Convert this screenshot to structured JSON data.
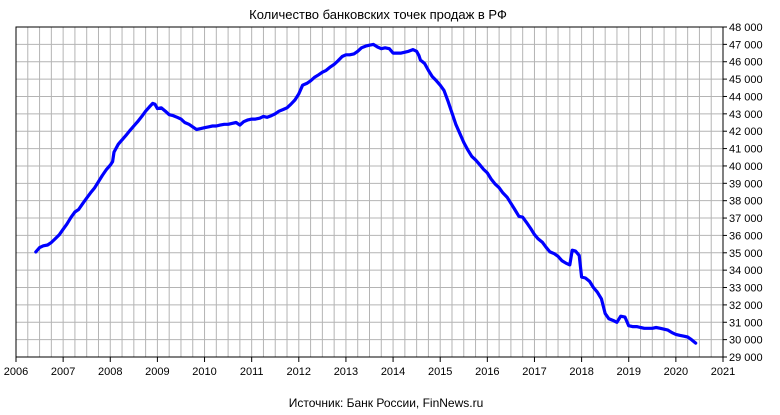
{
  "chart_data": {
    "type": "line",
    "title": "Количество банковских точек продаж в РФ",
    "source": "Источник: Банк России, FinNews.ru",
    "xlim": [
      2006,
      2021
    ],
    "ylim": [
      29000,
      48000
    ],
    "x_ticks": [
      {
        "value": 2006,
        "label": "2006"
      },
      {
        "value": 2007,
        "label": "2007"
      },
      {
        "value": 2008,
        "label": "2008"
      },
      {
        "value": 2009,
        "label": "2009"
      },
      {
        "value": 2010,
        "label": "2010"
      },
      {
        "value": 2011,
        "label": "2011"
      },
      {
        "value": 2012,
        "label": "2012"
      },
      {
        "value": 2013,
        "label": "2013"
      },
      {
        "value": 2014,
        "label": "2014"
      },
      {
        "value": 2015,
        "label": "2015"
      },
      {
        "value": 2016,
        "label": "2016"
      },
      {
        "value": 2017,
        "label": "2017"
      },
      {
        "value": 2018,
        "label": "2018"
      },
      {
        "value": 2019,
        "label": "2019"
      },
      {
        "value": 2020,
        "label": "2020"
      },
      {
        "value": 2021,
        "label": "2021"
      }
    ],
    "y_ticks": [
      {
        "value": 29000,
        "label": "29 000"
      },
      {
        "value": 30000,
        "label": "30 000"
      },
      {
        "value": 31000,
        "label": "31 000"
      },
      {
        "value": 32000,
        "label": "32 000"
      },
      {
        "value": 33000,
        "label": "33 000"
      },
      {
        "value": 34000,
        "label": "34 000"
      },
      {
        "value": 35000,
        "label": "35 000"
      },
      {
        "value": 36000,
        "label": "36 000"
      },
      {
        "value": 37000,
        "label": "37 000"
      },
      {
        "value": 38000,
        "label": "38 000"
      },
      {
        "value": 39000,
        "label": "39 000"
      },
      {
        "value": 40000,
        "label": "40 000"
      },
      {
        "value": 41000,
        "label": "41 000"
      },
      {
        "value": 42000,
        "label": "42 000"
      },
      {
        "value": 43000,
        "label": "43 000"
      },
      {
        "value": 44000,
        "label": "44 000"
      },
      {
        "value": 45000,
        "label": "45 000"
      },
      {
        "value": 46000,
        "label": "46 000"
      },
      {
        "value": 47000,
        "label": "47 000"
      },
      {
        "value": 48000,
        "label": "48 000"
      }
    ],
    "grid": true,
    "line_color": "#0000FF",
    "series": [
      {
        "points": [
          [
            2006.42,
            35050
          ],
          [
            2006.5,
            35300
          ],
          [
            2006.58,
            35400
          ],
          [
            2006.67,
            35450
          ],
          [
            2006.75,
            35600
          ],
          [
            2006.83,
            35800
          ],
          [
            2006.92,
            36050
          ],
          [
            2007.0,
            36350
          ],
          [
            2007.08,
            36650
          ],
          [
            2007.17,
            37050
          ],
          [
            2007.25,
            37350
          ],
          [
            2007.33,
            37500
          ],
          [
            2007.42,
            37850
          ],
          [
            2007.5,
            38150
          ],
          [
            2007.58,
            38450
          ],
          [
            2007.67,
            38750
          ],
          [
            2007.75,
            39100
          ],
          [
            2007.83,
            39450
          ],
          [
            2007.92,
            39800
          ],
          [
            2008.0,
            40050
          ],
          [
            2008.05,
            40250
          ],
          [
            2008.08,
            40800
          ],
          [
            2008.17,
            41250
          ],
          [
            2008.25,
            41500
          ],
          [
            2008.33,
            41750
          ],
          [
            2008.42,
            42050
          ],
          [
            2008.5,
            42300
          ],
          [
            2008.58,
            42550
          ],
          [
            2008.67,
            42850
          ],
          [
            2008.75,
            43150
          ],
          [
            2008.83,
            43400
          ],
          [
            2008.9,
            43600
          ],
          [
            2008.95,
            43550
          ],
          [
            2009.0,
            43300
          ],
          [
            2009.08,
            43350
          ],
          [
            2009.17,
            43150
          ],
          [
            2009.25,
            42950
          ],
          [
            2009.33,
            42900
          ],
          [
            2009.42,
            42800
          ],
          [
            2009.5,
            42700
          ],
          [
            2009.58,
            42500
          ],
          [
            2009.67,
            42400
          ],
          [
            2009.75,
            42250
          ],
          [
            2009.83,
            42100
          ],
          [
            2009.92,
            42150
          ],
          [
            2010.0,
            42200
          ],
          [
            2010.08,
            42250
          ],
          [
            2010.17,
            42300
          ],
          [
            2010.25,
            42300
          ],
          [
            2010.33,
            42350
          ],
          [
            2010.42,
            42400
          ],
          [
            2010.5,
            42400
          ],
          [
            2010.58,
            42450
          ],
          [
            2010.67,
            42500
          ],
          [
            2010.75,
            42350
          ],
          [
            2010.83,
            42550
          ],
          [
            2010.92,
            42650
          ],
          [
            2011.0,
            42700
          ],
          [
            2011.08,
            42700
          ],
          [
            2011.17,
            42750
          ],
          [
            2011.25,
            42850
          ],
          [
            2011.33,
            42800
          ],
          [
            2011.42,
            42900
          ],
          [
            2011.5,
            43000
          ],
          [
            2011.58,
            43150
          ],
          [
            2011.67,
            43250
          ],
          [
            2011.75,
            43350
          ],
          [
            2011.83,
            43550
          ],
          [
            2011.92,
            43800
          ],
          [
            2012.0,
            44150
          ],
          [
            2012.08,
            44650
          ],
          [
            2012.17,
            44750
          ],
          [
            2012.25,
            44900
          ],
          [
            2012.33,
            45100
          ],
          [
            2012.42,
            45250
          ],
          [
            2012.5,
            45400
          ],
          [
            2012.58,
            45500
          ],
          [
            2012.67,
            45700
          ],
          [
            2012.75,
            45850
          ],
          [
            2012.83,
            46050
          ],
          [
            2012.92,
            46300
          ],
          [
            2013.0,
            46400
          ],
          [
            2013.08,
            46400
          ],
          [
            2013.17,
            46450
          ],
          [
            2013.25,
            46600
          ],
          [
            2013.33,
            46800
          ],
          [
            2013.42,
            46900
          ],
          [
            2013.5,
            46950
          ],
          [
            2013.58,
            47000
          ],
          [
            2013.67,
            46850
          ],
          [
            2013.75,
            46750
          ],
          [
            2013.83,
            46800
          ],
          [
            2013.92,
            46750
          ],
          [
            2014.0,
            46500
          ],
          [
            2014.08,
            46500
          ],
          [
            2014.17,
            46500
          ],
          [
            2014.25,
            46550
          ],
          [
            2014.33,
            46600
          ],
          [
            2014.42,
            46700
          ],
          [
            2014.5,
            46600
          ],
          [
            2014.55,
            46350
          ],
          [
            2014.58,
            46100
          ],
          [
            2014.67,
            45900
          ],
          [
            2014.75,
            45500
          ],
          [
            2014.83,
            45150
          ],
          [
            2014.92,
            44900
          ],
          [
            2015.0,
            44650
          ],
          [
            2015.08,
            44350
          ],
          [
            2015.17,
            43700
          ],
          [
            2015.25,
            43050
          ],
          [
            2015.33,
            42400
          ],
          [
            2015.42,
            41850
          ],
          [
            2015.5,
            41350
          ],
          [
            2015.58,
            40950
          ],
          [
            2015.67,
            40550
          ],
          [
            2015.75,
            40350
          ],
          [
            2015.83,
            40100
          ],
          [
            2015.92,
            39800
          ],
          [
            2016.0,
            39600
          ],
          [
            2016.08,
            39250
          ],
          [
            2016.17,
            38950
          ],
          [
            2016.25,
            38750
          ],
          [
            2016.33,
            38450
          ],
          [
            2016.42,
            38200
          ],
          [
            2016.5,
            37850
          ],
          [
            2016.58,
            37500
          ],
          [
            2016.67,
            37100
          ],
          [
            2016.75,
            37050
          ],
          [
            2016.83,
            36750
          ],
          [
            2016.92,
            36400
          ],
          [
            2017.0,
            36050
          ],
          [
            2017.08,
            35800
          ],
          [
            2017.17,
            35600
          ],
          [
            2017.25,
            35300
          ],
          [
            2017.33,
            35050
          ],
          [
            2017.42,
            34950
          ],
          [
            2017.5,
            34800
          ],
          [
            2017.58,
            34550
          ],
          [
            2017.67,
            34400
          ],
          [
            2017.75,
            34300
          ],
          [
            2017.8,
            35150
          ],
          [
            2017.87,
            35100
          ],
          [
            2017.95,
            34850
          ],
          [
            2018.0,
            33600
          ],
          [
            2018.08,
            33550
          ],
          [
            2018.17,
            33350
          ],
          [
            2018.25,
            33000
          ],
          [
            2018.33,
            32750
          ],
          [
            2018.42,
            32350
          ],
          [
            2018.5,
            31500
          ],
          [
            2018.58,
            31200
          ],
          [
            2018.67,
            31100
          ],
          [
            2018.75,
            31000
          ],
          [
            2018.83,
            31350
          ],
          [
            2018.92,
            31300
          ],
          [
            2019.0,
            30800
          ],
          [
            2019.08,
            30750
          ],
          [
            2019.17,
            30750
          ],
          [
            2019.25,
            30700
          ],
          [
            2019.33,
            30650
          ],
          [
            2019.42,
            30650
          ],
          [
            2019.5,
            30650
          ],
          [
            2019.58,
            30700
          ],
          [
            2019.67,
            30650
          ],
          [
            2019.75,
            30600
          ],
          [
            2019.83,
            30550
          ],
          [
            2019.92,
            30400
          ],
          [
            2020.0,
            30300
          ],
          [
            2020.08,
            30250
          ],
          [
            2020.17,
            30200
          ],
          [
            2020.25,
            30150
          ],
          [
            2020.33,
            30000
          ],
          [
            2020.42,
            29800
          ]
        ]
      }
    ]
  }
}
